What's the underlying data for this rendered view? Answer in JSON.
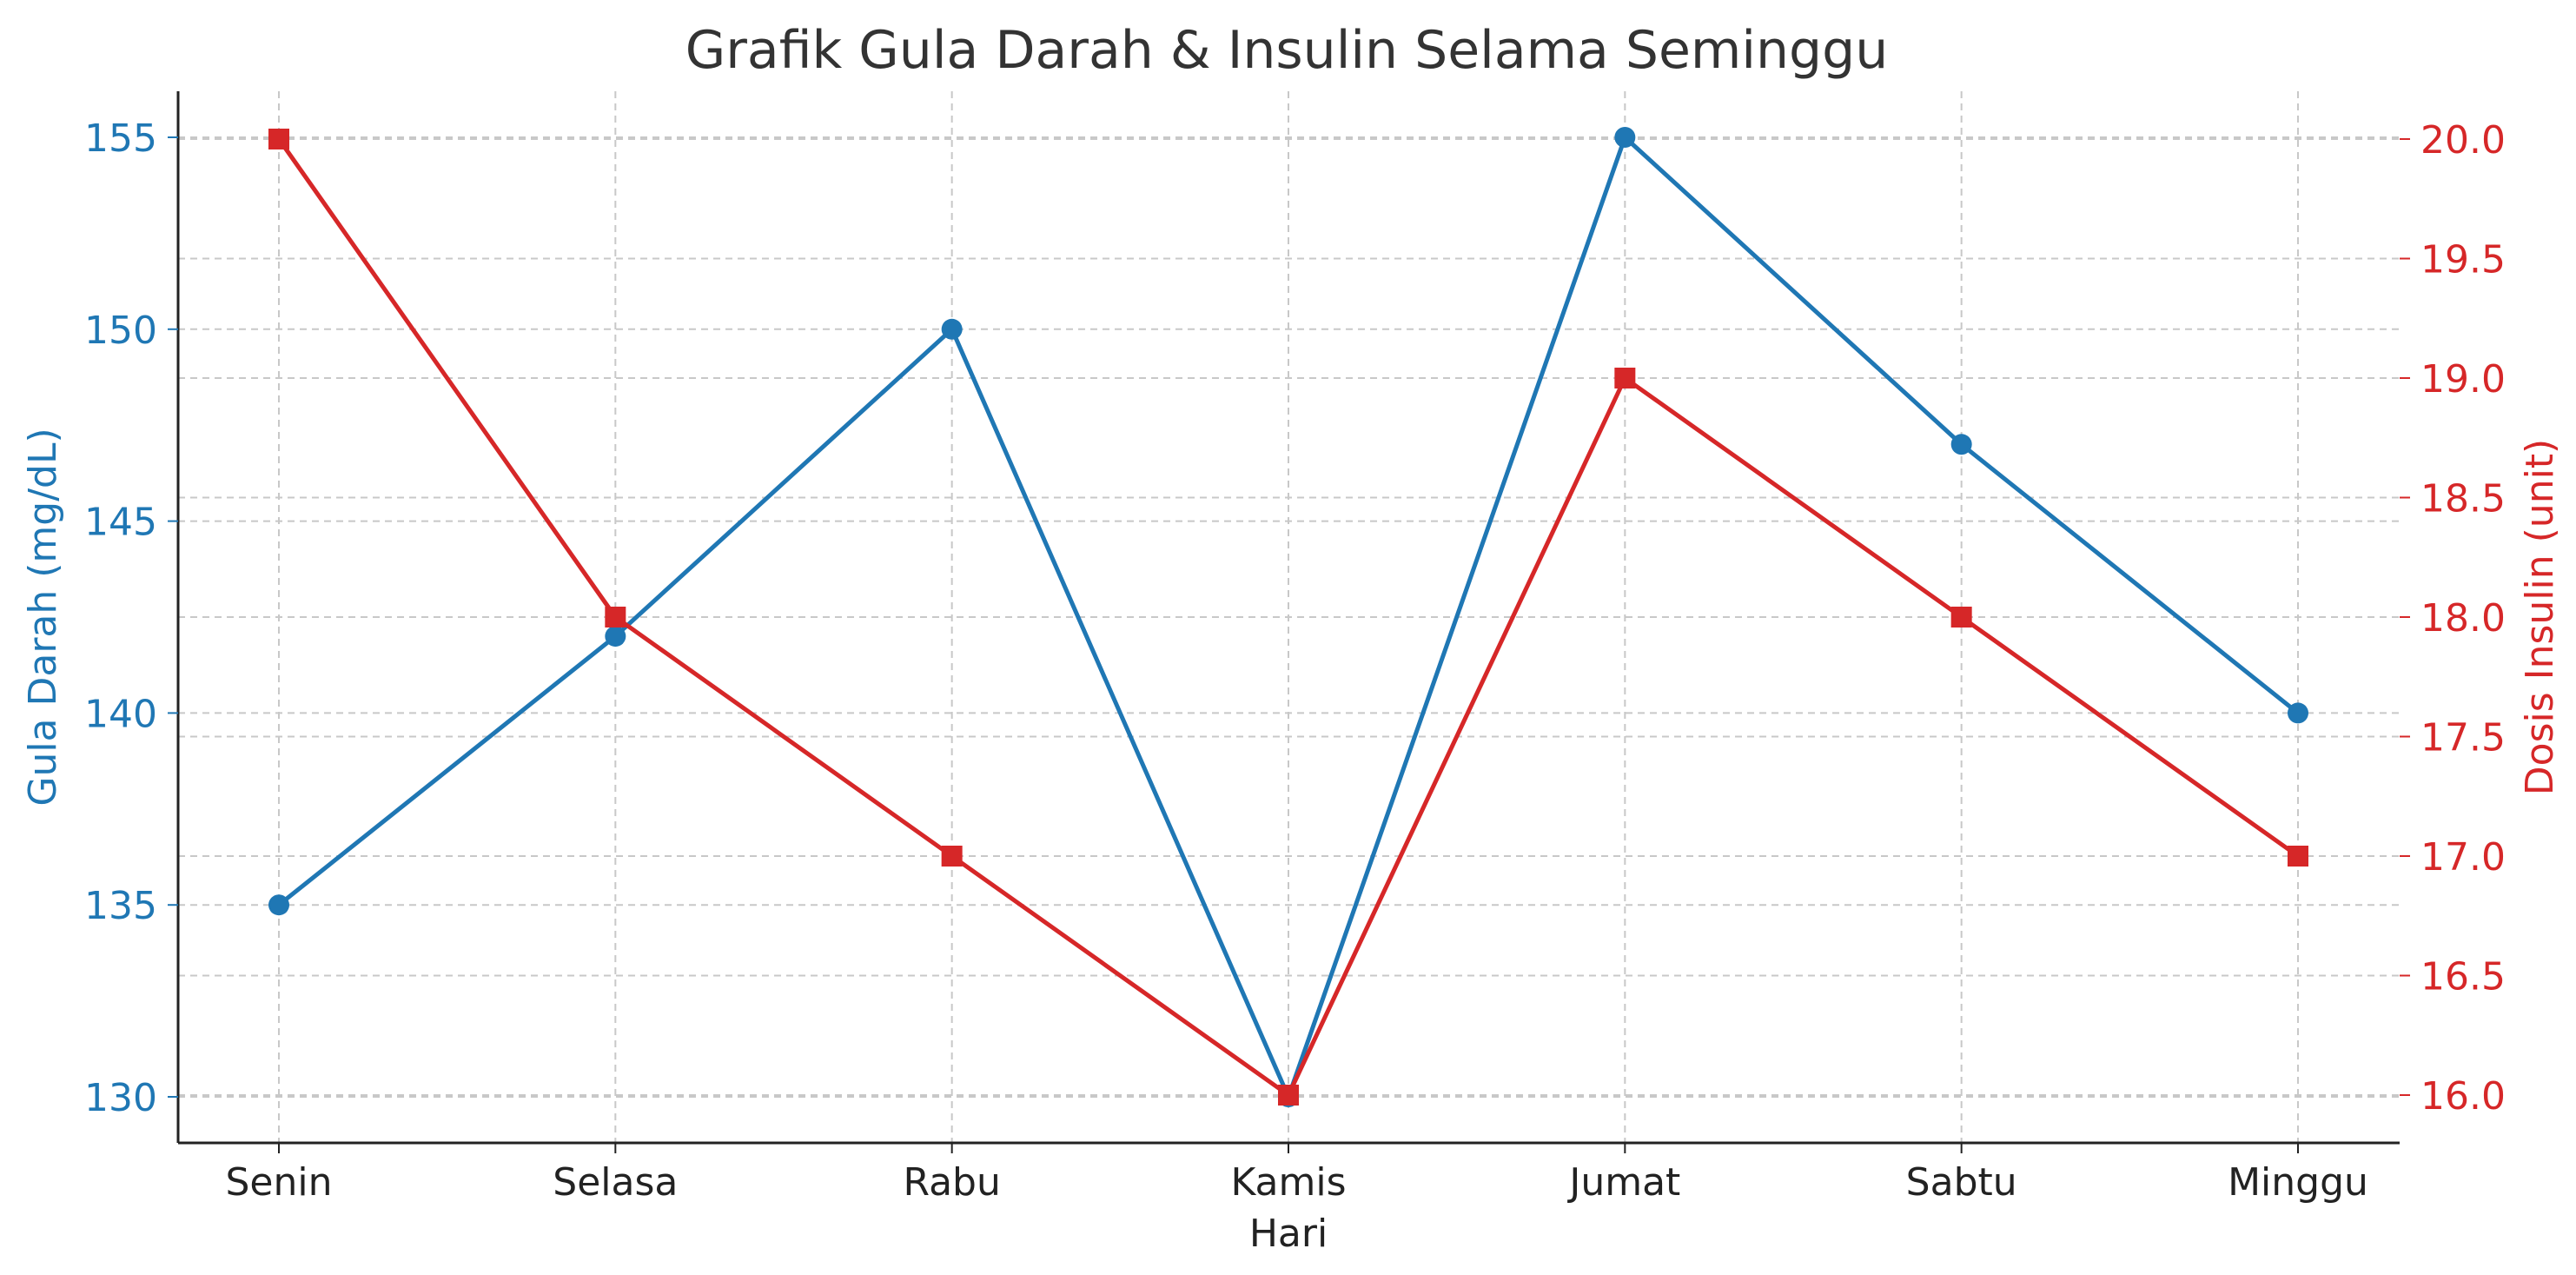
{
  "chart_data": {
    "type": "line",
    "title": "Grafik Gula Darah & Insulin Selama Seminggu",
    "xlabel": "Hari",
    "categories": [
      "Senin",
      "Selasa",
      "Rabu",
      "Kamis",
      "Jumat",
      "Sabtu",
      "Minggu"
    ],
    "y_left": {
      "label": "Gula Darah (mg/dL)",
      "range": [
        128.8,
        156.2
      ],
      "ticks": [
        "130",
        "135",
        "140",
        "145",
        "150",
        "155"
      ],
      "color": "#1f77b4"
    },
    "y_right": {
      "label": "Dosis Insulin (unit)",
      "range": [
        15.8,
        20.2
      ],
      "ticks": [
        "16.0",
        "16.5",
        "17.0",
        "17.5",
        "18.0",
        "18.5",
        "19.0",
        "19.5",
        "20.0"
      ],
      "color": "#d62728"
    },
    "series": [
      {
        "values": [
          135,
          142,
          150,
          130,
          155,
          147,
          140
        ],
        "axis": "left",
        "marker": "circle",
        "color": "#1f77b4"
      },
      {
        "values": [
          20,
          18,
          17,
          16,
          19,
          18,
          17
        ],
        "axis": "right",
        "marker": "square",
        "color": "#d62728"
      }
    ],
    "grid": true
  }
}
